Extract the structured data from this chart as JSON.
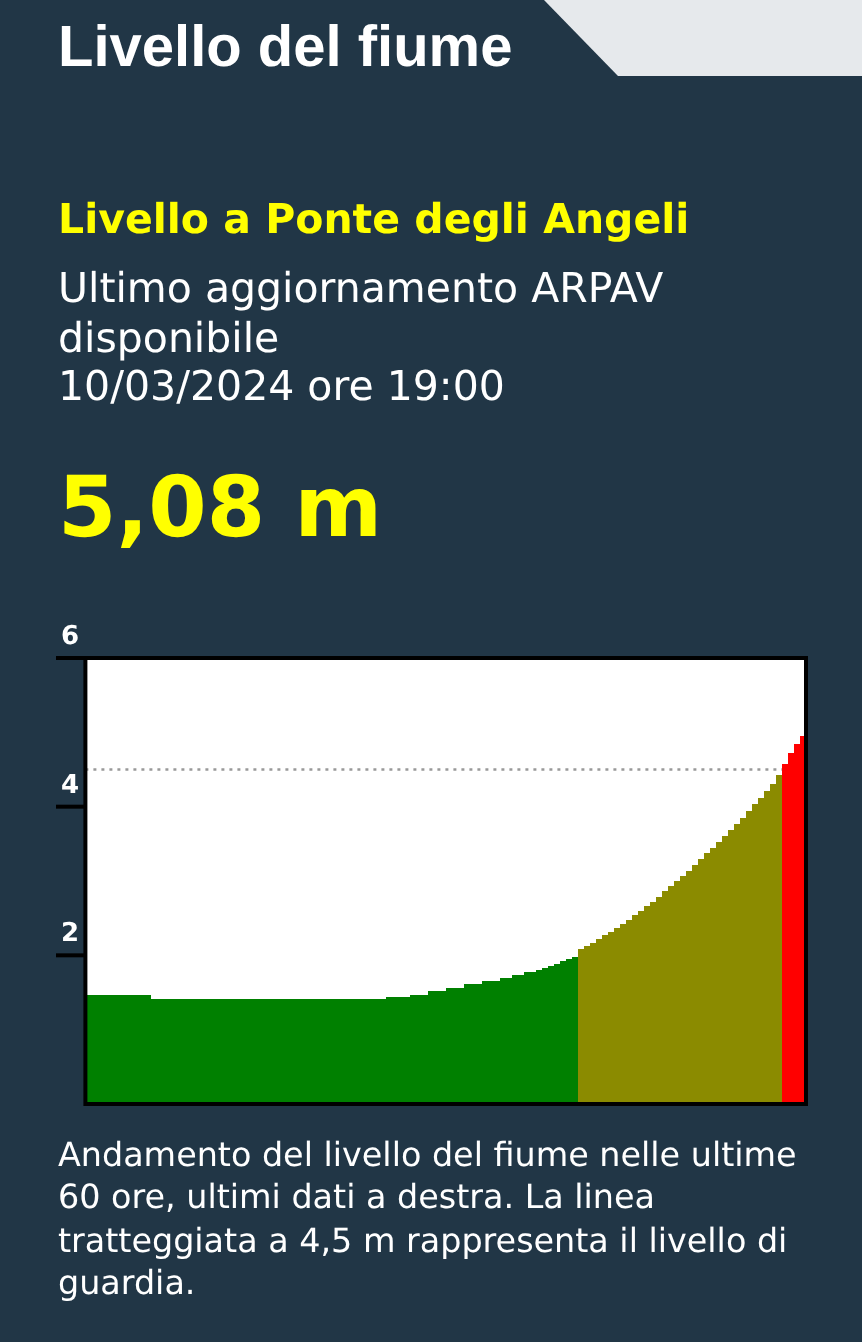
{
  "chart_data": {
    "type": "bar",
    "title": "Livello del fiume",
    "subtitle": "Livello a Ponte degli Angeli",
    "annotations": [
      "Ultimo aggiornamento ARPAV disponibile\n10/03/2024 ore 19:00",
      "5,08 m",
      "Andamento del livello del fiume nelle ultime 60 ore, ultimi dati a destra. La linea tratteggiata a 4,5 m rappresenta il livello di guardia."
    ],
    "categories": [
      null,
      null,
      null,
      null,
      null,
      null,
      null,
      null,
      null,
      null,
      null,
      null,
      null,
      null,
      null,
      null,
      null,
      null,
      null,
      null,
      null,
      null,
      null,
      null,
      null,
      null,
      null,
      null,
      null,
      null,
      null,
      null,
      null,
      null,
      null,
      null,
      null,
      null,
      null,
      null,
      null,
      null,
      null,
      null,
      null,
      null,
      null,
      null,
      null,
      null,
      null,
      null,
      null,
      null,
      null,
      null,
      null,
      null,
      null,
      null,
      null,
      null,
      null,
      null,
      null,
      null,
      null,
      null,
      null,
      null,
      null,
      null,
      null,
      null,
      null,
      null,
      null,
      null,
      null,
      null,
      null,
      null,
      null,
      null,
      null,
      null,
      null,
      null,
      null,
      null,
      null,
      null,
      null,
      null,
      null,
      null,
      null,
      null,
      null,
      null,
      null,
      null,
      null,
      null,
      null,
      null,
      null,
      null,
      null,
      null,
      null,
      null,
      null,
      null,
      null,
      null,
      null,
      null,
      null,
      null
    ],
    "values": [
      1.46,
      1.46,
      1.46,
      1.46,
      1.46,
      1.46,
      1.46,
      1.46,
      1.46,
      1.46,
      1.46,
      1.41,
      1.41,
      1.41,
      1.41,
      1.41,
      1.41,
      1.41,
      1.41,
      1.41,
      1.41,
      1.41,
      1.41,
      1.41,
      1.41,
      1.41,
      1.41,
      1.41,
      1.41,
      1.41,
      1.41,
      1.41,
      1.41,
      1.41,
      1.41,
      1.41,
      1.41,
      1.41,
      1.41,
      1.41,
      1.41,
      1.41,
      1.41,
      1.41,
      1.41,
      1.41,
      1.41,
      1.41,
      1.41,
      1.41,
      1.44,
      1.44,
      1.44,
      1.44,
      1.47,
      1.47,
      1.47,
      1.52,
      1.52,
      1.52,
      1.56,
      1.56,
      1.56,
      1.61,
      1.61,
      1.61,
      1.65,
      1.65,
      1.65,
      1.7,
      1.7,
      1.73,
      1.73,
      1.77,
      1.77,
      1.8,
      1.83,
      1.86,
      1.89,
      1.92,
      1.95,
      1.98,
      2.08,
      2.12,
      2.17,
      2.22,
      2.27,
      2.32,
      2.37,
      2.42,
      2.48,
      2.54,
      2.6,
      2.66,
      2.72,
      2.79,
      2.86,
      2.93,
      3.0,
      3.07,
      3.14,
      3.21,
      3.29,
      3.37,
      3.45,
      3.53,
      3.61,
      3.69,
      3.77,
      3.85,
      3.94,
      4.03,
      4.12,
      4.21,
      4.31,
      4.42,
      4.58,
      4.72,
      4.84,
      4.95
    ],
    "colors": [
      "#008000",
      "#008000",
      "#008000",
      "#008000",
      "#008000",
      "#008000",
      "#008000",
      "#008000",
      "#008000",
      "#008000",
      "#008000",
      "#008000",
      "#008000",
      "#008000",
      "#008000",
      "#008000",
      "#008000",
      "#008000",
      "#008000",
      "#008000",
      "#008000",
      "#008000",
      "#008000",
      "#008000",
      "#008000",
      "#008000",
      "#008000",
      "#008000",
      "#008000",
      "#008000",
      "#008000",
      "#008000",
      "#008000",
      "#008000",
      "#008000",
      "#008000",
      "#008000",
      "#008000",
      "#008000",
      "#008000",
      "#008000",
      "#008000",
      "#008000",
      "#008000",
      "#008000",
      "#008000",
      "#008000",
      "#008000",
      "#008000",
      "#008000",
      "#008000",
      "#008000",
      "#008000",
      "#008000",
      "#008000",
      "#008000",
      "#008000",
      "#008000",
      "#008000",
      "#008000",
      "#008000",
      "#008000",
      "#008000",
      "#008000",
      "#008000",
      "#008000",
      "#008000",
      "#008000",
      "#008000",
      "#008000",
      "#008000",
      "#008000",
      "#008000",
      "#008000",
      "#008000",
      "#008000",
      "#008000",
      "#008000",
      "#008000",
      "#008000",
      "#008000",
      "#008000",
      "#8b8b00",
      "#8b8b00",
      "#8b8b00",
      "#8b8b00",
      "#8b8b00",
      "#8b8b00",
      "#8b8b00",
      "#8b8b00",
      "#8b8b00",
      "#8b8b00",
      "#8b8b00",
      "#8b8b00",
      "#8b8b00",
      "#8b8b00",
      "#8b8b00",
      "#8b8b00",
      "#8b8b00",
      "#8b8b00",
      "#8b8b00",
      "#8b8b00",
      "#8b8b00",
      "#8b8b00",
      "#8b8b00",
      "#8b8b00",
      "#8b8b00",
      "#8b8b00",
      "#8b8b00",
      "#8b8b00",
      "#8b8b00",
      "#8b8b00",
      "#8b8b00",
      "#8b8b00",
      "#8b8b00",
      "#8b8b00",
      "#ff0000",
      "#ff0000",
      "#ff0000",
      "#ff0000"
    ],
    "ylim": [
      0,
      6
    ],
    "yticks": [
      2,
      4,
      6
    ],
    "tick_labels": "y",
    "ref_lines": [
      {
        "axis": "y",
        "value": 4.5,
        "color": "#999999",
        "line_style": "dotted"
      }
    ]
  }
}
